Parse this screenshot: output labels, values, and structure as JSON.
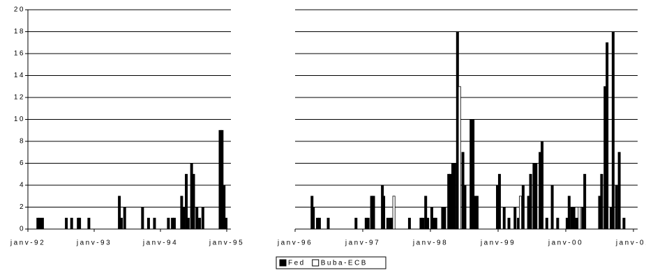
{
  "chart_data": {
    "type": "bar",
    "grid": true,
    "ylim": [
      0,
      20
    ],
    "yticks": [
      0,
      2,
      4,
      6,
      8,
      10,
      12,
      14,
      16,
      18,
      20
    ],
    "panels": [
      {
        "xlim": [
          1992,
          1995
        ],
        "xticks": [
          {
            "value": 1992,
            "label": "janv-92"
          },
          {
            "value": 1993,
            "label": "janv-93"
          },
          {
            "value": 1994,
            "label": "janv-94"
          },
          {
            "value": 1995,
            "label": "janv-95"
          }
        ]
      },
      {
        "xlim": [
          1996,
          2001
        ],
        "xticks": [
          {
            "value": 1996,
            "label": "janv-96"
          },
          {
            "value": 1997,
            "label": "janv-97"
          },
          {
            "value": 1998,
            "label": "janv-98"
          },
          {
            "value": 1999,
            "label": "janv-99"
          },
          {
            "value": 2000,
            "label": "janv-00"
          },
          {
            "value": 2001,
            "label": "janv-01"
          }
        ]
      }
    ],
    "series": [
      {
        "name": "Fed",
        "color": "#000000",
        "x": [
          1992.15,
          1992.18,
          1992.22,
          1992.58,
          1992.66,
          1992.76,
          1992.78,
          1992.92,
          1993.38,
          1993.41,
          1993.46,
          1993.73,
          1993.82,
          1993.91,
          1994.12,
          1994.18,
          1994.21,
          1994.32,
          1994.35,
          1994.39,
          1994.42,
          1994.47,
          1994.5,
          1994.55,
          1994.59,
          1994.64,
          1994.9,
          1994.93,
          1994.96,
          1994.99,
          1996.25,
          1996.27,
          1996.33,
          1996.36,
          1996.49,
          1996.9,
          1997.05,
          1997.08,
          1997.13,
          1997.16,
          1997.29,
          1997.31,
          1997.37,
          1997.41,
          1997.44,
          1997.69,
          1997.86,
          1997.89,
          1997.93,
          1997.96,
          1998.02,
          1998.05,
          1998.08,
          1998.18,
          1998.21,
          1998.27,
          1998.3,
          1998.33,
          1998.36,
          1998.4,
          1998.48,
          1998.51,
          1998.6,
          1998.63,
          1998.66,
          1998.69,
          1998.99,
          1999.02,
          1999.09,
          1999.16,
          1999.25,
          1999.3,
          1999.37,
          1999.45,
          1999.48,
          1999.53,
          1999.56,
          1999.62,
          1999.65,
          1999.72,
          1999.8,
          1999.88,
          2000.02,
          2000.05,
          2000.09,
          2000.12,
          2000.16,
          2000.25,
          2000.28,
          2000.5,
          2000.53,
          2000.58,
          2000.61,
          2000.67,
          2000.7,
          2000.75,
          2000.79,
          2000.86
        ],
        "values": [
          1,
          1,
          1,
          1,
          1,
          1,
          1,
          1,
          3,
          1,
          2,
          2,
          1,
          1,
          1,
          1,
          1,
          3,
          2,
          5,
          1,
          6,
          5,
          2,
          1,
          2,
          9,
          9,
          4,
          1,
          3,
          2,
          1,
          1,
          1,
          1,
          1,
          1,
          3,
          3,
          4,
          3,
          1,
          1,
          1,
          1,
          1,
          1,
          3,
          1,
          2,
          1,
          1,
          2,
          2,
          5,
          5,
          6,
          6,
          18,
          7,
          4,
          10,
          10,
          3,
          3,
          4,
          5,
          2,
          1,
          2,
          1,
          4,
          3,
          5,
          6,
          6,
          7,
          8,
          1,
          4,
          1,
          1,
          3,
          2,
          2,
          1,
          2,
          5,
          3,
          5,
          13,
          17,
          2,
          18,
          4,
          7,
          1
        ]
      },
      {
        "name": "Buba-ECB",
        "color": "#ffffff",
        "x": [
          1997.46,
          1998.43,
          1999.33,
          2000.2
        ],
        "values": [
          3,
          13,
          3,
          2
        ]
      }
    ]
  }
}
